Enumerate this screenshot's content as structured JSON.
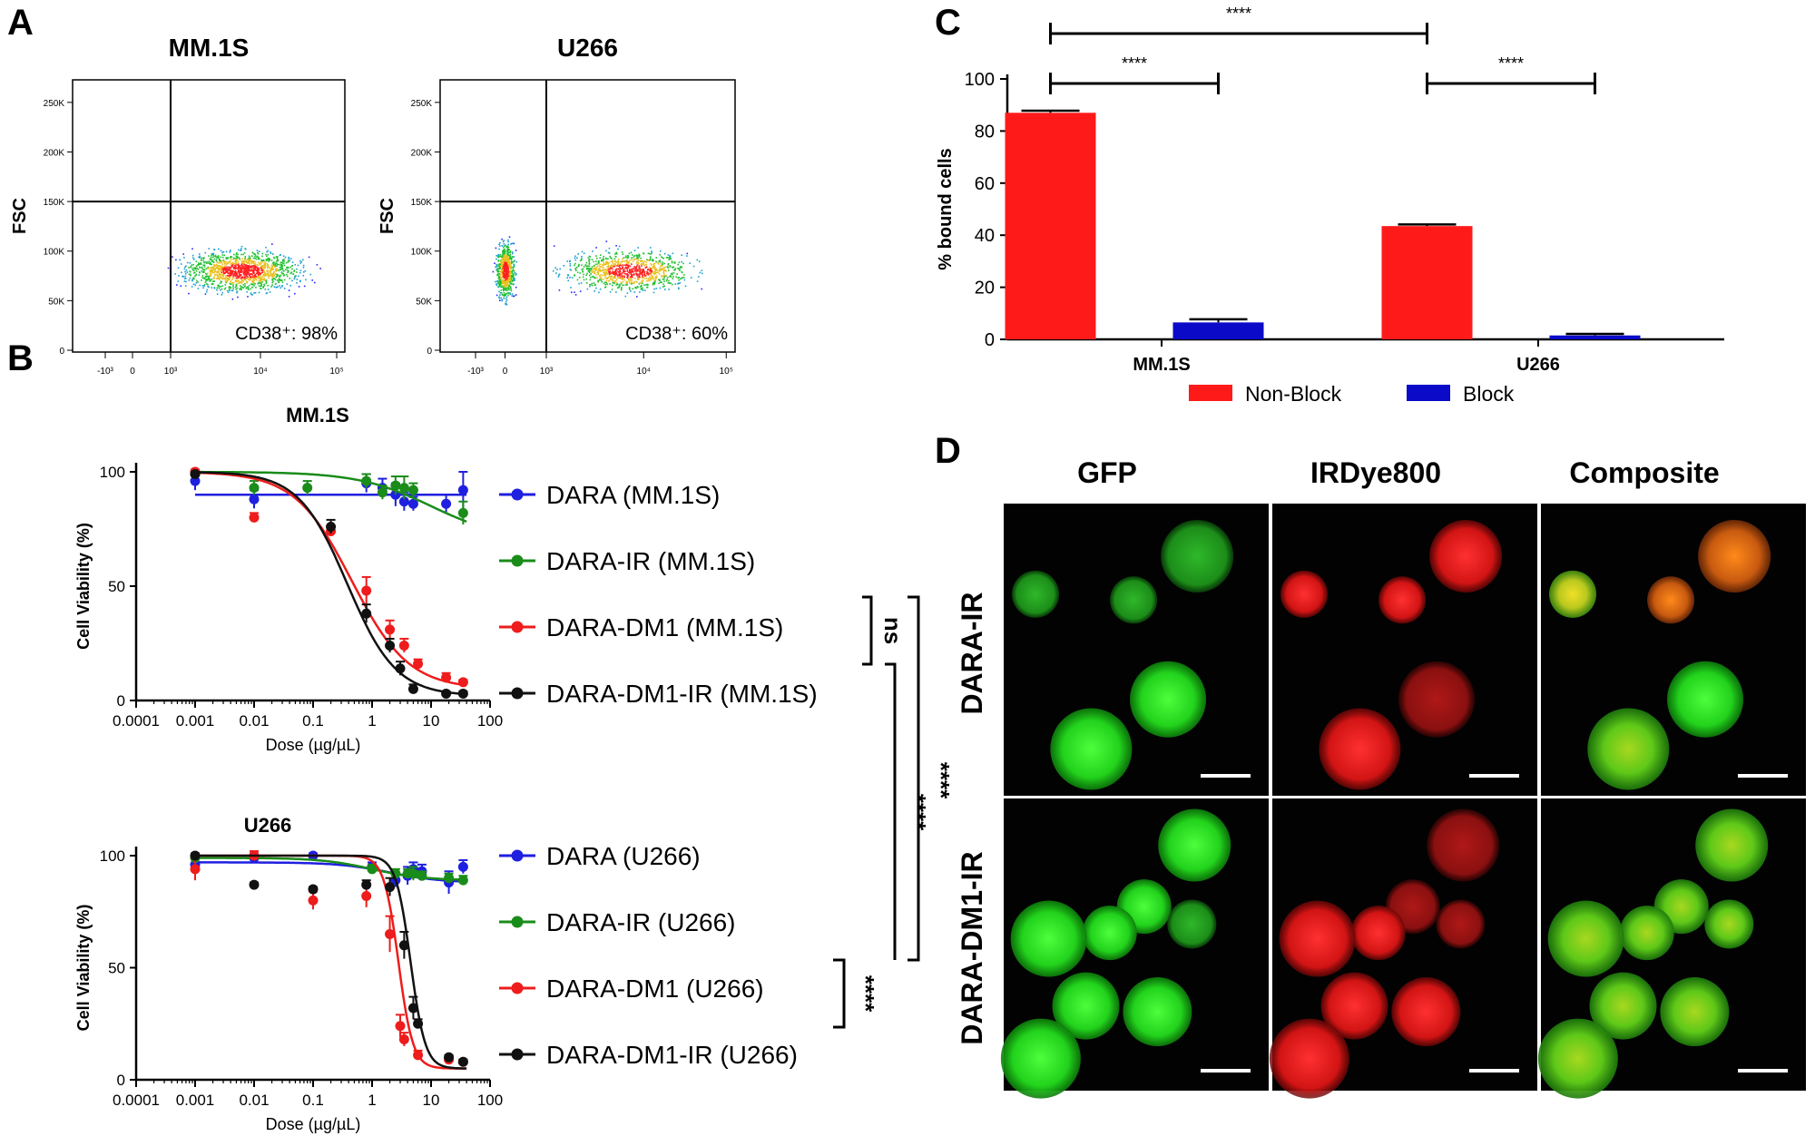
{
  "panel_letters": [
    "A",
    "B",
    "C",
    "D"
  ],
  "panelA": {
    "shared_xlabel": "MM.1S",
    "y_ticks": [
      "250K",
      "200K",
      "150K",
      "100K",
      "50K",
      "0"
    ],
    "y_tick_values": [
      250000,
      200000,
      150000,
      100000,
      50000,
      0
    ],
    "x_ticks": [
      "-10³",
      "0",
      "10³",
      "10⁴",
      "10⁵"
    ],
    "plots": [
      {
        "title": "MM.1S",
        "ylabel": "FSC",
        "annotation": "CD38⁺: 98%",
        "gate_x": "10³",
        "gate_y": 150000
      },
      {
        "title": "U266",
        "ylabel": "FSC",
        "annotation": "CD38⁺: 60%",
        "gate_x": "10³",
        "gate_y": 150000
      }
    ]
  },
  "chart_data": [
    {
      "id": "B-top",
      "type": "scatter",
      "title": "",
      "xlabel": "Dose (µg/µL)",
      "ylabel": "Cell Viability (%)",
      "xscale": "log",
      "xlim": [
        0.0001,
        100
      ],
      "ylim": [
        0,
        100
      ],
      "x_ticks": [
        "0.0001",
        "0.001",
        "0.01",
        "0.1",
        "1",
        "10",
        "100"
      ],
      "x_tick_values": [
        0.0001,
        0.001,
        0.01,
        0.1,
        1,
        10,
        100
      ],
      "y_ticks": [
        "0",
        "50",
        "100"
      ],
      "y_tick_values": [
        0,
        50,
        100
      ],
      "legend_position": "right",
      "series": [
        {
          "name": "DARA (MM.1S)",
          "color": "#1f1fe0",
          "x": [
            0.001,
            0.01,
            0.8,
            1.5,
            2.5,
            3.5,
            5,
            18,
            35
          ],
          "y": [
            96,
            88,
            95,
            93,
            90,
            87,
            86,
            86,
            92
          ],
          "err": [
            4,
            4,
            4,
            4,
            5,
            4,
            3,
            4,
            8
          ],
          "fit": {
            "model": "flat",
            "top": 90
          }
        },
        {
          "name": "DARA-IR (MM.1S)",
          "color": "#1a8c1a",
          "x": [
            0.001,
            0.01,
            0.08,
            0.8,
            1.5,
            2.5,
            3.5,
            5,
            35
          ],
          "y": [
            99,
            93,
            93,
            96,
            91,
            94,
            93,
            92,
            82
          ],
          "err": [
            2,
            3,
            3,
            3,
            3,
            4,
            5,
            3,
            5
          ],
          "fit": {
            "model": "logistic",
            "top": 100,
            "bottom": 70,
            "ec50": 10,
            "hill": 0.7
          }
        },
        {
          "name": "DARA-DM1 (MM.1S)",
          "color": "#ee1c1c",
          "x": [
            0.001,
            0.01,
            0.2,
            0.8,
            2,
            3.5,
            6,
            18,
            35
          ],
          "y": [
            100,
            80,
            74,
            48,
            31,
            24,
            16,
            10,
            8
          ],
          "err": [
            1,
            2,
            2,
            6,
            4,
            3,
            2,
            2,
            1
          ],
          "fit": {
            "model": "logistic",
            "top": 100,
            "bottom": 5,
            "ec50": 0.45,
            "hill": 0.9
          }
        },
        {
          "name": "DARA-DM1-IR (MM.1S)",
          "color": "#111111",
          "x": [
            0.001,
            0.2,
            0.8,
            2,
            3,
            5,
            18,
            35
          ],
          "y": [
            99,
            76,
            38,
            24,
            14,
            5,
            3,
            3
          ],
          "err": [
            1,
            3,
            4,
            3,
            3,
            2,
            1,
            1
          ],
          "fit": {
            "model": "logistic",
            "top": 100,
            "bottom": 2,
            "ec50": 0.38,
            "hill": 1.05
          }
        }
      ]
    },
    {
      "id": "B-bottom",
      "type": "scatter",
      "title": "U266",
      "xlabel": "Dose (µg/µL)",
      "ylabel": "Cell Viability (%)",
      "xscale": "log",
      "xlim": [
        0.0001,
        100
      ],
      "ylim": [
        0,
        100
      ],
      "x_ticks": [
        "0.0001",
        "0.001",
        "0.01",
        "0.1",
        "1",
        "10",
        "100"
      ],
      "x_tick_values": [
        0.0001,
        0.001,
        0.01,
        0.1,
        1,
        10,
        100
      ],
      "y_ticks": [
        "0",
        "50",
        "100"
      ],
      "y_tick_values": [
        0,
        50,
        100
      ],
      "legend_position": "right",
      "series": [
        {
          "name": "DARA (U266)",
          "color": "#1f1fe0",
          "x": [
            0.001,
            0.01,
            0.1,
            1,
            2.5,
            4,
            5,
            7,
            20,
            35
          ],
          "y": [
            96,
            99,
            100,
            95,
            89,
            91,
            94,
            93,
            88,
            95
          ],
          "err": [
            3,
            2,
            1,
            2,
            3,
            4,
            3,
            3,
            5,
            3
          ],
          "fit": {
            "model": "logistic",
            "top": 97,
            "bottom": 88,
            "ec50": 2,
            "hill": 1.0
          }
        },
        {
          "name": "DARA-IR (U266)",
          "color": "#1a8c1a",
          "x": [
            0.001,
            1,
            2.5,
            4,
            5,
            7,
            20,
            35
          ],
          "y": [
            99,
            94,
            92,
            92,
            92,
            91,
            90,
            89
          ],
          "err": [
            2,
            2,
            2,
            2,
            3,
            2,
            2,
            2
          ],
          "fit": {
            "model": "logistic",
            "top": 99,
            "bottom": 89,
            "ec50": 1,
            "hill": 1.0
          }
        },
        {
          "name": "DARA-DM1 (U266)",
          "color": "#ee1c1c",
          "x": [
            0.001,
            0.01,
            0.1,
            0.8,
            2,
            3,
            3.5,
            6,
            20,
            35
          ],
          "y": [
            94,
            100,
            80,
            82,
            65,
            24,
            18,
            11,
            9,
            8
          ],
          "err": [
            5,
            2,
            4,
            5,
            8,
            5,
            3,
            2,
            1,
            1
          ],
          "fit": {
            "model": "logistic",
            "top": 100,
            "bottom": 5,
            "ec50": 2.8,
            "hill": 3.5
          }
        },
        {
          "name": "DARA-DM1-IR (U266)",
          "color": "#111111",
          "x": [
            0.001,
            0.01,
            0.1,
            0.8,
            2,
            3.5,
            5,
            6,
            20,
            35
          ],
          "y": [
            100,
            87,
            85,
            87,
            86,
            60,
            32,
            25,
            10,
            8
          ],
          "err": [
            1,
            1,
            1,
            2,
            4,
            6,
            5,
            2,
            1,
            1
          ],
          "fit": {
            "model": "logistic",
            "top": 100,
            "bottom": 5,
            "ec50": 4.5,
            "hill": 3.5
          }
        }
      ]
    },
    {
      "id": "C",
      "type": "bar",
      "title": "",
      "xlabel": "",
      "ylabel": "% bound cells",
      "ylim": [
        0,
        100
      ],
      "y_ticks": [
        "0",
        "20",
        "40",
        "60",
        "80",
        "100"
      ],
      "y_tick_values": [
        0,
        20,
        40,
        60,
        80,
        100
      ],
      "categories": [
        "MM.1S",
        "U266"
      ],
      "legend_position": "bottom",
      "series": [
        {
          "name": "Non-Block",
          "color": "#ff1a1a",
          "values": [
            87,
            43.5
          ],
          "err": [
            0.8,
            0.6
          ]
        },
        {
          "name": "Block",
          "color": "#0a0ac8",
          "values": [
            6.5,
            1.5
          ],
          "err": [
            1.2,
            0.6
          ]
        }
      ],
      "significance": [
        {
          "label": "****",
          "between": "MM.1S Non-Block vs U266 Non-Block"
        },
        {
          "label": "****",
          "between": "MM.1S Non-Block vs MM.1S Block"
        },
        {
          "label": "****",
          "between": "U266 Non-Block vs U266 Block"
        }
      ]
    }
  ],
  "panelB": {
    "bracket_labels": {
      "ns": "ns",
      "mm_vs_u266_dm1": "****",
      "mm_vs_u266_dm1ir": "****",
      "u266_dm1_vs_dm1ir": "****"
    }
  },
  "panelD": {
    "columns": [
      "GFP",
      "IRDye800",
      "Composite"
    ],
    "rows": [
      "DARA-IR",
      "DARA-DM1-IR"
    ]
  }
}
